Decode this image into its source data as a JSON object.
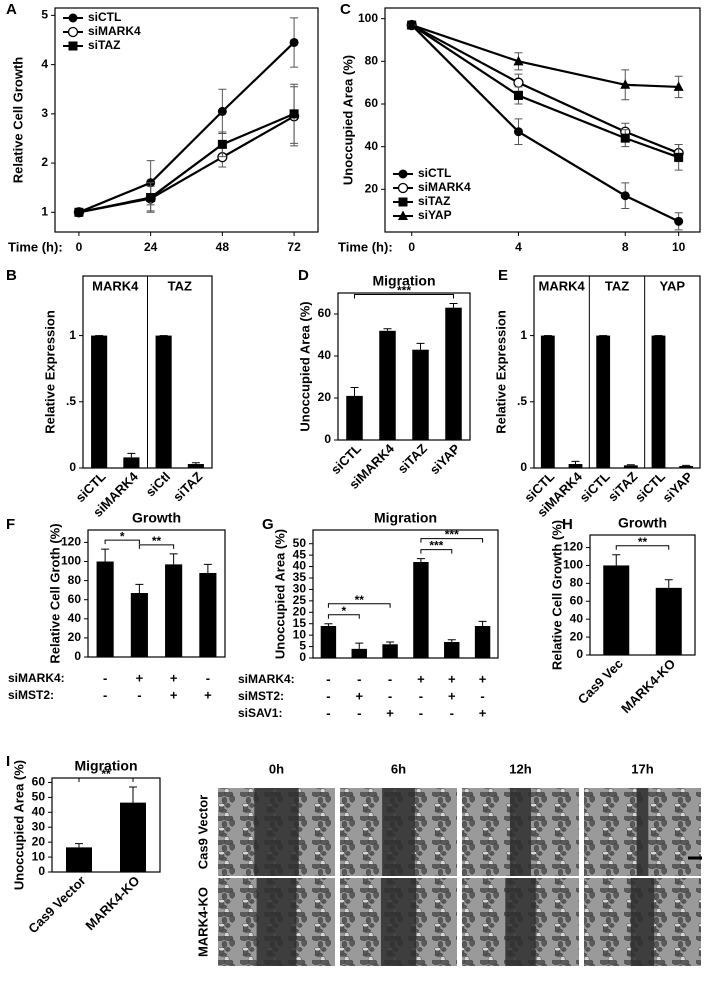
{
  "chart_data": [
    {
      "panel": "A",
      "type": "line",
      "ylabel": "Relative Cell Growth",
      "xlabel": "Time (h):",
      "x": [
        0,
        24,
        48,
        72
      ],
      "xlim": [
        -8,
        80
      ],
      "xticks": [
        0,
        24,
        48,
        72
      ],
      "ylim": [
        0.6,
        5.15
      ],
      "yticks": [
        1,
        2,
        3,
        4,
        5
      ],
      "legend": "top-left",
      "series": [
        {
          "name": "siCTL",
          "color": "#000000",
          "marker": "circle",
          "values": [
            1,
            1.6,
            3.05,
            4.45
          ],
          "errors": [
            0,
            0.45,
            0.45,
            0.5
          ]
        },
        {
          "name": "siMARK4",
          "color": "#000000",
          "marker": "open-circle",
          "values": [
            1,
            1.28,
            2.12,
            2.95
          ],
          "errors": [
            0,
            0.25,
            0.2,
            0.6
          ]
        },
        {
          "name": "siTAZ",
          "color": "#000000",
          "marker": "square",
          "values": [
            1,
            1.3,
            2.38,
            3.0
          ],
          "errors": [
            0,
            0.3,
            0.25,
            0.6
          ]
        }
      ]
    },
    {
      "panel": "C",
      "type": "line",
      "ylabel": "Unoccupied Area (%)",
      "xlabel": "Time (h):",
      "x": [
        0,
        4,
        8,
        10
      ],
      "xlim": [
        -1,
        10.8
      ],
      "xticks": [
        0,
        4,
        8,
        10
      ],
      "ylim": [
        0,
        105
      ],
      "yticks": [
        20,
        40,
        60,
        80,
        100
      ],
      "legend": "bottom-left",
      "series": [
        {
          "name": "siCTL",
          "color": "#000000",
          "marker": "circle",
          "values": [
            97,
            47,
            17,
            5
          ],
          "errors": [
            0,
            6,
            6,
            4
          ]
        },
        {
          "name": "siMARK4",
          "color": "#000000",
          "marker": "open-circle",
          "values": [
            97,
            70,
            47,
            37
          ],
          "errors": [
            0,
            4,
            4,
            4
          ]
        },
        {
          "name": "siTAZ",
          "color": "#000000",
          "marker": "square",
          "values": [
            97,
            64,
            44,
            35
          ],
          "errors": [
            0,
            4,
            4,
            6
          ]
        },
        {
          "name": "siYAP",
          "color": "#000000",
          "marker": "triangle",
          "values": [
            97,
            80,
            69,
            68
          ],
          "errors": [
            0,
            4,
            7,
            5
          ]
        }
      ]
    },
    {
      "panel": "B",
      "type": "bar",
      "ylabel": "Relative Expression",
      "ylim": [
        0,
        1.45
      ],
      "yticks": [
        0,
        {
          "value": 0.5,
          "label": ".5"
        },
        1
      ],
      "groups": [
        {
          "name": "MARK4",
          "categories": [
            "siCTL",
            "siMARK4"
          ],
          "values": [
            1,
            0.08
          ],
          "errors": [
            0,
            0.03
          ]
        },
        {
          "name": "TAZ",
          "categories": [
            "siCtl",
            "siTAZ"
          ],
          "values": [
            1,
            0.03
          ],
          "errors": [
            0,
            0.01
          ]
        }
      ]
    },
    {
      "panel": "D",
      "type": "bar",
      "title": "Migration",
      "ylabel": "Unoccupied Area (%)",
      "ylim": [
        0,
        70
      ],
      "yticks": [
        0,
        20,
        40,
        60
      ],
      "groups": [
        {
          "categories": [
            "siCTL",
            "siMARK4",
            "siTAZ",
            "siYAP"
          ],
          "values": [
            21,
            52,
            43,
            63
          ],
          "errors": [
            4,
            1,
            3,
            2
          ]
        }
      ],
      "significance": [
        {
          "between": [
            0,
            3
          ],
          "label": "***"
        }
      ]
    },
    {
      "panel": "E",
      "type": "bar",
      "ylabel": "Relative Expression",
      "ylim": [
        0,
        1.45
      ],
      "yticks": [
        0,
        {
          "value": 0.5,
          "label": ".5"
        },
        1
      ],
      "groups": [
        {
          "name": "MARK4",
          "categories": [
            "siCTL",
            "siMARK4"
          ],
          "values": [
            1,
            0.03
          ],
          "errors": [
            0,
            0.02
          ]
        },
        {
          "name": "TAZ",
          "categories": [
            "siCTL",
            "siTAZ"
          ],
          "values": [
            1,
            0.02
          ],
          "errors": [
            0,
            0.005
          ]
        },
        {
          "name": "YAP",
          "categories": [
            "siCTL",
            "siYAP"
          ],
          "values": [
            1,
            0.015
          ],
          "errors": [
            0,
            0.005
          ]
        }
      ]
    },
    {
      "panel": "F",
      "type": "bar",
      "title": "Growth",
      "ylabel": "Relative Cell Groth (%)",
      "ylim": [
        0,
        133
      ],
      "yticks": [
        0,
        20,
        40,
        60,
        80,
        100,
        120
      ],
      "groups": [
        {
          "values": [
            100,
            67,
            97,
            88
          ],
          "errors": [
            13,
            9,
            11,
            9
          ]
        }
      ],
      "conditions": [
        {
          "name": "siMARK4:",
          "signs": [
            "-",
            "+",
            "+",
            "-"
          ]
        },
        {
          "name": "siMST2:",
          "signs": [
            "-",
            "-",
            "+",
            "+"
          ]
        }
      ],
      "significance": [
        {
          "between": [
            0,
            1
          ],
          "label": "*"
        },
        {
          "between": [
            1,
            2
          ],
          "label": "**"
        }
      ]
    },
    {
      "panel": "G",
      "type": "bar",
      "title": "Migration",
      "ylabel": "Unoccupied Area (%)",
      "ylim": [
        0,
        56
      ],
      "yticks": [
        0,
        5,
        10,
        15,
        20,
        25,
        30,
        35,
        40,
        45,
        50
      ],
      "groups": [
        {
          "values": [
            14,
            4,
            6,
            42,
            7,
            14
          ],
          "errors": [
            1,
            2.5,
            1,
            1.5,
            1,
            2
          ]
        }
      ],
      "conditions": [
        {
          "name": "siMARK4:",
          "signs": [
            "-",
            "-",
            "-",
            "+",
            "+",
            "+"
          ]
        },
        {
          "name": "siMST2:",
          "signs": [
            "-",
            "+",
            "-",
            "-",
            "+",
            "-"
          ]
        },
        {
          "name": "siSAV1:",
          "signs": [
            "-",
            "-",
            "+",
            "-",
            "-",
            "+"
          ]
        }
      ],
      "significance": [
        {
          "between": [
            0,
            1
          ],
          "label": "*"
        },
        {
          "between": [
            0,
            2
          ],
          "label": "**"
        },
        {
          "between": [
            3,
            4
          ],
          "label": "***"
        },
        {
          "between": [
            3,
            5
          ],
          "label": "***"
        }
      ]
    },
    {
      "panel": "H",
      "type": "bar",
      "title": "Growth",
      "ylabel": "Relative Cell Growth (%)",
      "ylim": [
        0,
        134
      ],
      "yticks": [
        0,
        20,
        40,
        60,
        80,
        100,
        120
      ],
      "groups": [
        {
          "categories": [
            "Cas9 Vec",
            "MARK4-KO"
          ],
          "values": [
            100,
            75
          ],
          "errors": [
            12,
            9
          ]
        }
      ],
      "significance": [
        {
          "between": [
            0,
            1
          ],
          "label": "**"
        }
      ]
    },
    {
      "panel": "I",
      "type": "bar",
      "title": "Migration",
      "ylabel": "Unoccupied Area (%)",
      "ylim": [
        0,
        63
      ],
      "yticks": [
        0,
        10,
        20,
        30,
        40,
        50,
        60
      ],
      "groups": [
        {
          "categories": [
            "Cas9 Vector",
            "MARK4-KO"
          ],
          "values": [
            16.5,
            46.5
          ],
          "errors": [
            2.5,
            10.5
          ]
        }
      ],
      "significance": [
        {
          "between": [
            0,
            1
          ],
          "label": "**"
        }
      ]
    }
  ],
  "micrographs": {
    "columns": [
      "0h",
      "6h",
      "12h",
      "17h"
    ],
    "rows": [
      "Cas9 Vector",
      "MARK4-KO"
    ]
  }
}
